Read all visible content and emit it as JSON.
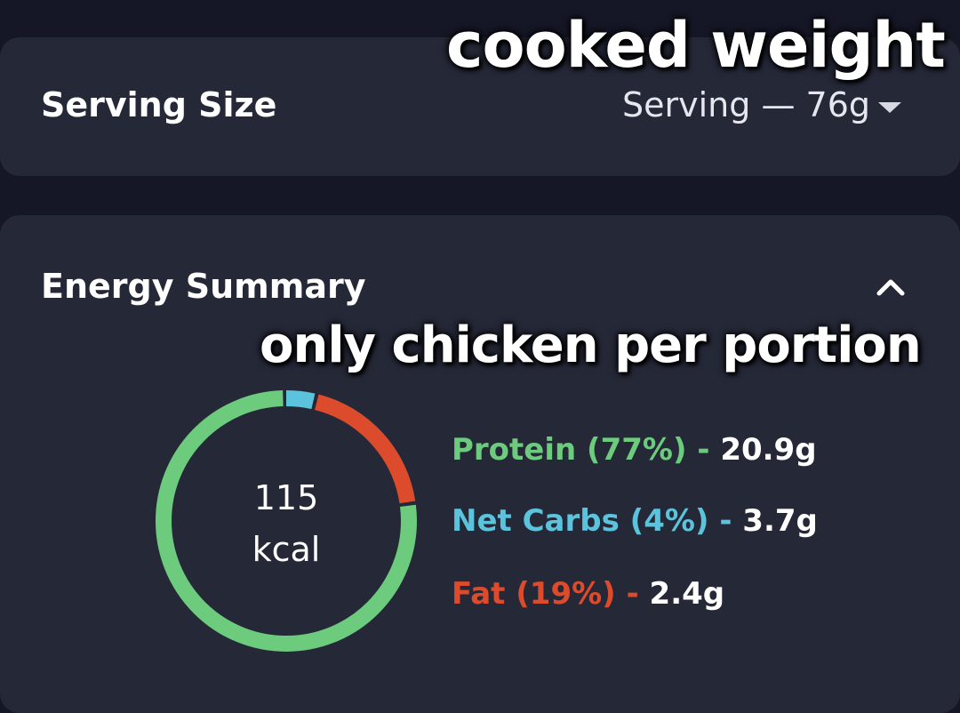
{
  "serving": {
    "label": "Serving Size",
    "value": "Serving — 76g"
  },
  "energy": {
    "label": "Energy Summary",
    "calories": "115",
    "unit": "kcal"
  },
  "overlays": {
    "top": "cooked weight",
    "middle": "only chicken per portion"
  },
  "macros": [
    {
      "name": "Protein (77%)",
      "separator": " - ",
      "amount": "20.9g",
      "percent": 77,
      "color": "#6dcb7e"
    },
    {
      "name": "Net Carbs (4%)",
      "separator": " - ",
      "amount": "3.7g",
      "percent": 4,
      "color": "#5bc3dc"
    },
    {
      "name": "Fat (19%)",
      "separator": " - ",
      "amount": "2.4g",
      "percent": 19,
      "color": "#dc4c2c"
    }
  ],
  "colors": {
    "background": "#161726",
    "card": "#252837"
  },
  "icons": {
    "serving_dropdown": "caret-down-icon",
    "energy_toggle": "chevron-up-icon"
  }
}
